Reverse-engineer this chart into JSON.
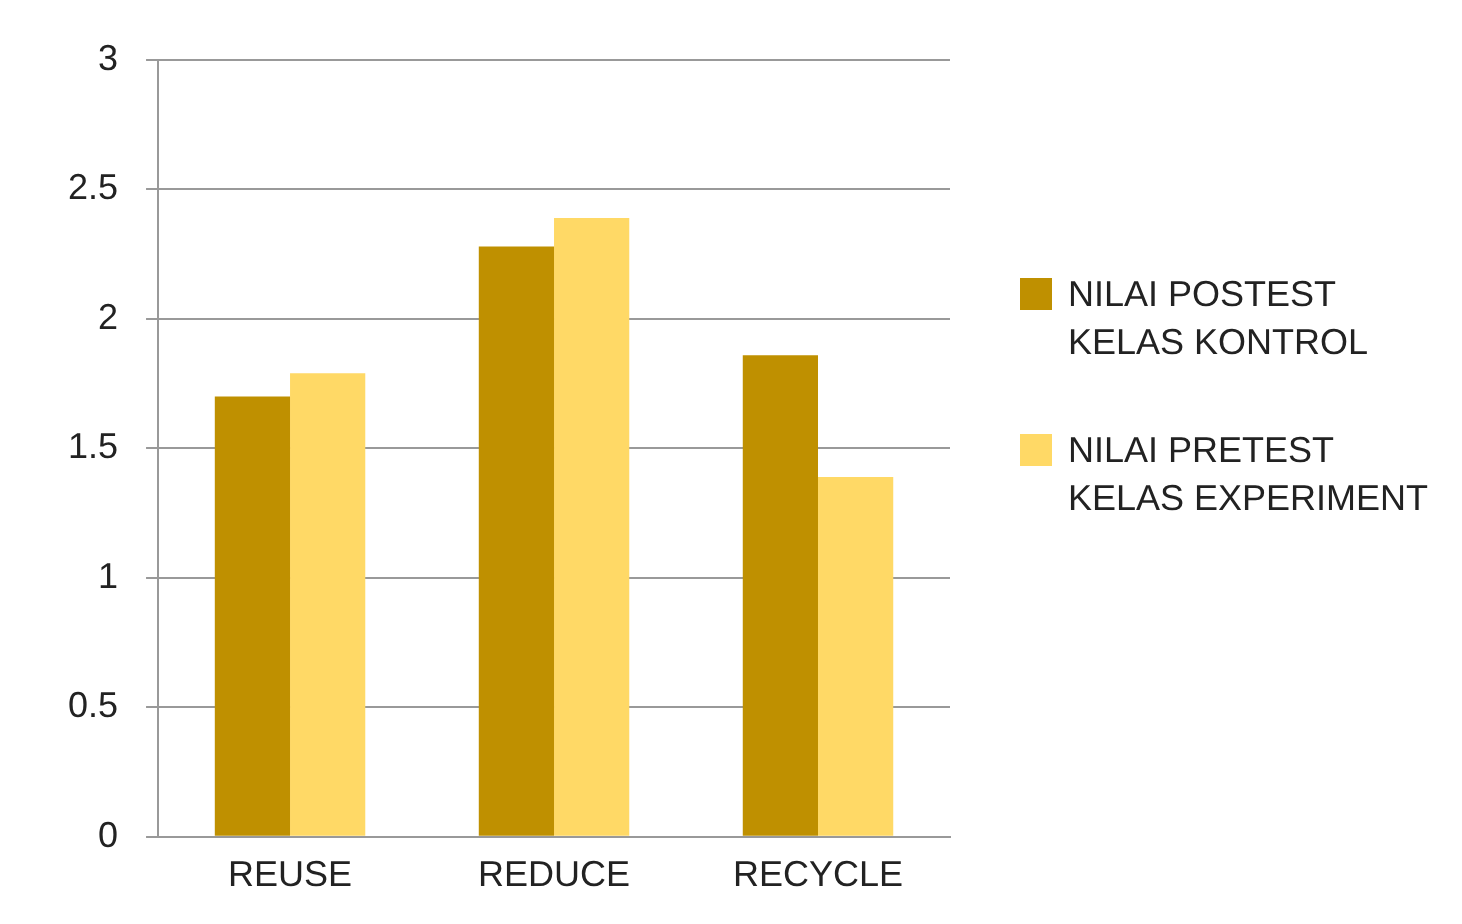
{
  "chart_data": {
    "type": "bar",
    "categories": [
      "REUSE",
      "REDUCE",
      "RECYCLE"
    ],
    "series": [
      {
        "name": "NILAI POSTEST KELAS KONTROL",
        "color": "#bf9000",
        "values": [
          1.7,
          2.28,
          1.86
        ]
      },
      {
        "name": "NILAI PRETEST KELAS EXPERIMENT",
        "color": "#ffd966",
        "values": [
          1.79,
          2.39,
          1.39
        ]
      }
    ],
    "ylim": [
      0,
      3
    ],
    "yticks": [
      0,
      0.5,
      1,
      1.5,
      2,
      2.5,
      3
    ],
    "grid": "y",
    "legend": "right"
  }
}
